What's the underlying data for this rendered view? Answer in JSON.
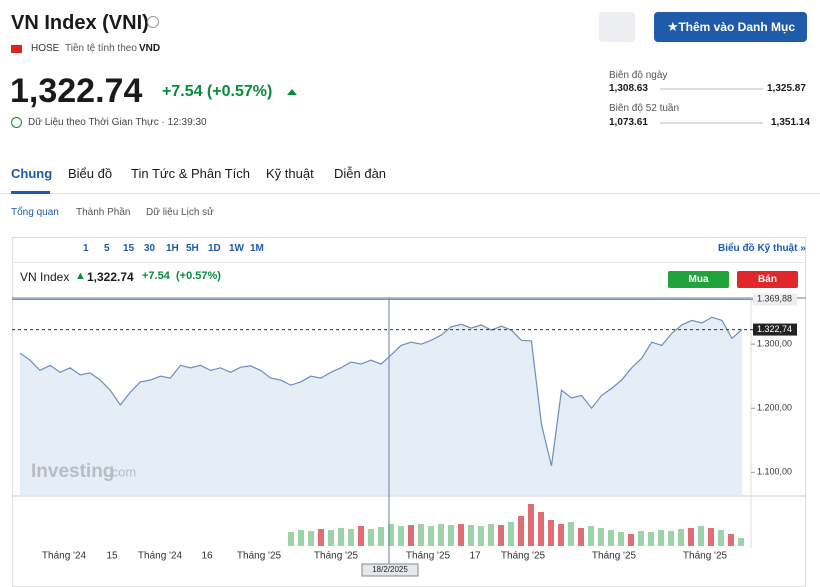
{
  "header": {
    "title": "VN Index (VNI)",
    "exchange": "HOSE",
    "currency_label": "Tiền tệ tính theo",
    "currency": "VND",
    "price": "1,322.74",
    "change": "+7.54 (+0.57%)",
    "realtime": "Dữ Liệu theo Thời Gian Thực · 12:39:30",
    "button": "Thêm vào Danh Mục"
  },
  "ranges": [
    {
      "label": "Biên độ ngày",
      "low": "1,308.63",
      "high": "1,325.87"
    },
    {
      "label": "Biên độ 52 tuần",
      "low": "1,073.61",
      "high": "1,351.14"
    }
  ],
  "tabs": [
    "Chung",
    "Biểu đồ",
    "Tin Tức & Phân Tích",
    "Kỹ thuật",
    "Diễn đàn"
  ],
  "subtabs": [
    "Tổng quan",
    "Thành Phần",
    "Dữ liệu Lịch sử"
  ],
  "toolbar": {
    "intervals": [
      "1",
      "5",
      "15",
      "30",
      "1H",
      "5H",
      "1D",
      "1W",
      "1M"
    ],
    "link": "Biểu đồ Kỹ thuật »"
  },
  "legend": {
    "name": "VN Index",
    "price": "1,322.74",
    "change": "+7.54",
    "percent": "(+0.57%)",
    "buy": "Mua",
    "sell": "Bán"
  },
  "watermark": "Investing",
  "watermark_suffix": ".com",
  "chart_data": {
    "type": "area",
    "color": "#6c8ebf",
    "values": [
      1286,
      1275,
      1259,
      1267,
      1256,
      1263,
      1252,
      1255,
      1244,
      1228,
      1205,
      1225,
      1241,
      1244,
      1250,
      1247,
      1267,
      1263,
      1267,
      1259,
      1263,
      1256,
      1264,
      1266,
      1259,
      1247,
      1244,
      1236,
      1241,
      1250,
      1247,
      1256,
      1263,
      1272,
      1269,
      1275,
      1269,
      1283,
      1298,
      1303,
      1300,
      1306,
      1314,
      1327,
      1331,
      1325,
      1330,
      1322,
      1328,
      1322,
      1306,
      1305,
      1175,
      1110,
      1228,
      1216,
      1220,
      1200,
      1220,
      1231,
      1244,
      1263,
      1278,
      1303,
      1298,
      1317,
      1330,
      1337,
      1333,
      1342,
      1337,
      1309,
      1322.74
    ],
    "ylim": [
      1063,
      1372
    ],
    "yticks": [
      {
        "value": 1100,
        "label": "1.100,00"
      },
      {
        "value": 1200,
        "label": "1.200,00"
      },
      {
        "value": 1300,
        "label": "1.300,00"
      }
    ],
    "high": {
      "value": 1369.88,
      "label": "1.369,88"
    },
    "current": {
      "value": 1322.74,
      "label": "1.322,74"
    },
    "xlabels": [
      "Tháng '24",
      "15",
      "Tháng '24",
      "16",
      "Tháng '25",
      "Tháng '25",
      "Tháng '25",
      "17",
      "Tháng '25",
      "Tháng '25",
      "Tháng '25"
    ],
    "crosshair_date": "18/2/2025",
    "volume": {
      "values": [
        14,
        16,
        15,
        17,
        16,
        18,
        17,
        20,
        17,
        19,
        22,
        20,
        21,
        22,
        20,
        22,
        21,
        22,
        21,
        20,
        22,
        21,
        24,
        30,
        42,
        34,
        26,
        22,
        24,
        18,
        20,
        18,
        16,
        14,
        12,
        15,
        14,
        16,
        15,
        17,
        18,
        20,
        18,
        16,
        12,
        8
      ],
      "colors": [
        "#9dd3a8",
        "#9dd3a8",
        "#9dd3a8",
        "#e06c75",
        "#9dd3a8",
        "#9dd3a8",
        "#9dd3a8",
        "#e06c75",
        "#9dd3a8",
        "#9dd3a8",
        "#9dd3a8",
        "#9dd3a8",
        "#e06c75",
        "#9dd3a8",
        "#9dd3a8",
        "#9dd3a8",
        "#9dd3a8",
        "#e06c75",
        "#9dd3a8",
        "#9dd3a8",
        "#9dd3a8",
        "#e06c75",
        "#9dd3a8",
        "#e06c75",
        "#e06c75",
        "#e06c75",
        "#e06c75",
        "#e06c75",
        "#9dd3a8",
        "#e06c75",
        "#9dd3a8",
        "#9dd3a8",
        "#9dd3a8",
        "#9dd3a8",
        "#e06c75",
        "#9dd3a8",
        "#9dd3a8",
        "#9dd3a8",
        "#9dd3a8",
        "#9dd3a8",
        "#e06c75",
        "#9dd3a8",
        "#e06c75",
        "#9dd3a8",
        "#e06c75",
        "#9dd3a8"
      ]
    }
  }
}
